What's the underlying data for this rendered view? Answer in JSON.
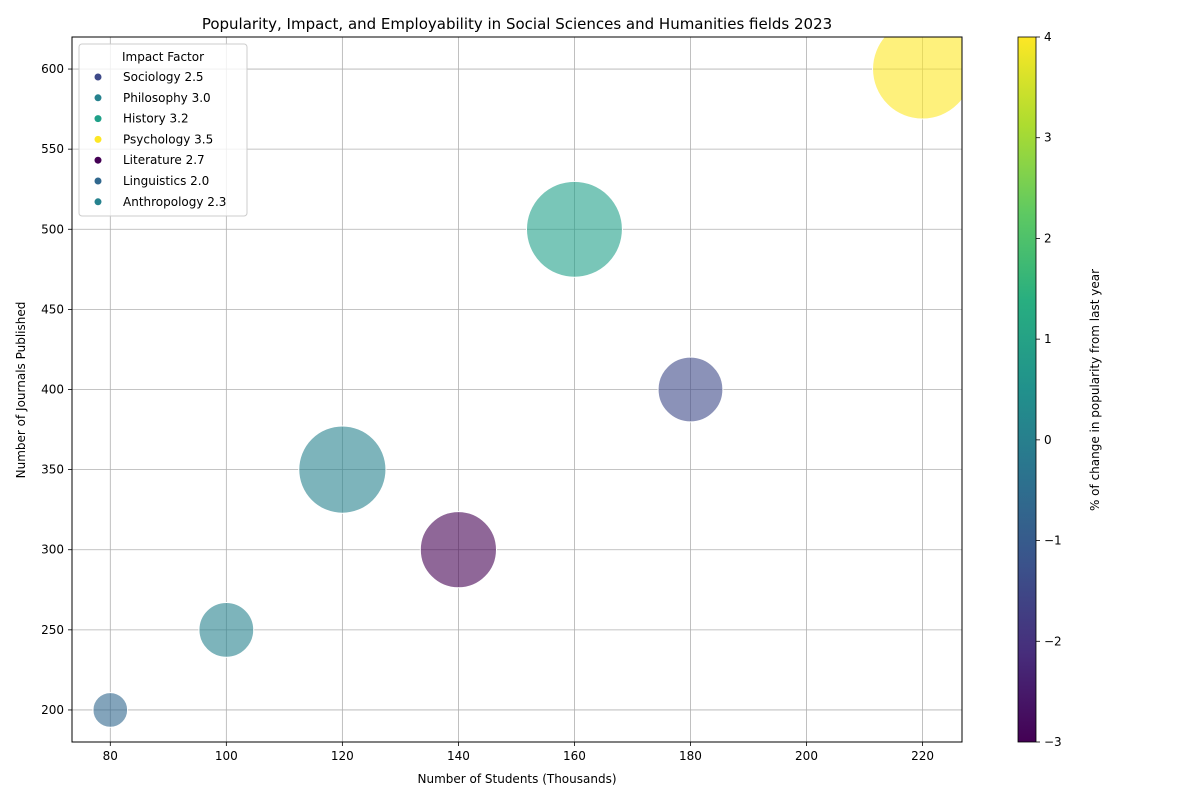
{
  "chart_data": {
    "type": "scatter",
    "title": "Popularity, Impact, and Employability in Social Sciences and Humanities fields 2023",
    "xlabel": "Number of Students (Thousands)",
    "ylabel": "Number of Journals Published",
    "xlim": [
      73.4,
      226.8
    ],
    "ylim": [
      180,
      620
    ],
    "x_ticks": [
      80,
      100,
      120,
      140,
      160,
      180,
      200,
      220
    ],
    "y_ticks": [
      200,
      250,
      300,
      350,
      400,
      450,
      500,
      550,
      600
    ],
    "grid": true,
    "legend": {
      "title": "Impact Factor",
      "placement": "top-left",
      "entries": [
        {
          "label": "Sociology 2.5",
          "color": "#3e4a89"
        },
        {
          "label": "Philosophy 3.0",
          "color": "#26828e"
        },
        {
          "label": "History 3.2",
          "color": "#1fa088"
        },
        {
          "label": "Psychology 3.5",
          "color": "#fde725"
        },
        {
          "label": "Literature 2.7",
          "color": "#440154"
        },
        {
          "label": "Linguistics 2.0",
          "color": "#31688e"
        },
        {
          "label": "Anthropology 2.3",
          "color": "#26828e"
        }
      ]
    },
    "colorbar": {
      "label": "% of change in popularity from last year",
      "range": [
        -3,
        4
      ],
      "ticks": [
        -3,
        -2,
        -1,
        0,
        1,
        2,
        3,
        4
      ],
      "colormap": "viridis"
    },
    "series": [
      {
        "x": 180,
        "y": 400,
        "size_rel": 0.42,
        "change": -1.8,
        "color": "#3e4a89"
      },
      {
        "x": 120,
        "y": 350,
        "size_rel": 0.76,
        "change": 0.2,
        "color": "#26828e"
      },
      {
        "x": 160,
        "y": 500,
        "size_rel": 0.92,
        "change": 1.0,
        "color": "#1fa088"
      },
      {
        "x": 220,
        "y": 600,
        "size_rel": 1.0,
        "change": 4.0,
        "color": "#fde725"
      },
      {
        "x": 140,
        "y": 300,
        "size_rel": 0.58,
        "change": -3.0,
        "color": "#440154"
      },
      {
        "x": 80,
        "y": 200,
        "size_rel": 0.12,
        "change": -1.0,
        "color": "#31688e"
      },
      {
        "x": 100,
        "y": 250,
        "size_rel": 0.3,
        "change": 0.0,
        "color": "#26828e"
      }
    ]
  }
}
